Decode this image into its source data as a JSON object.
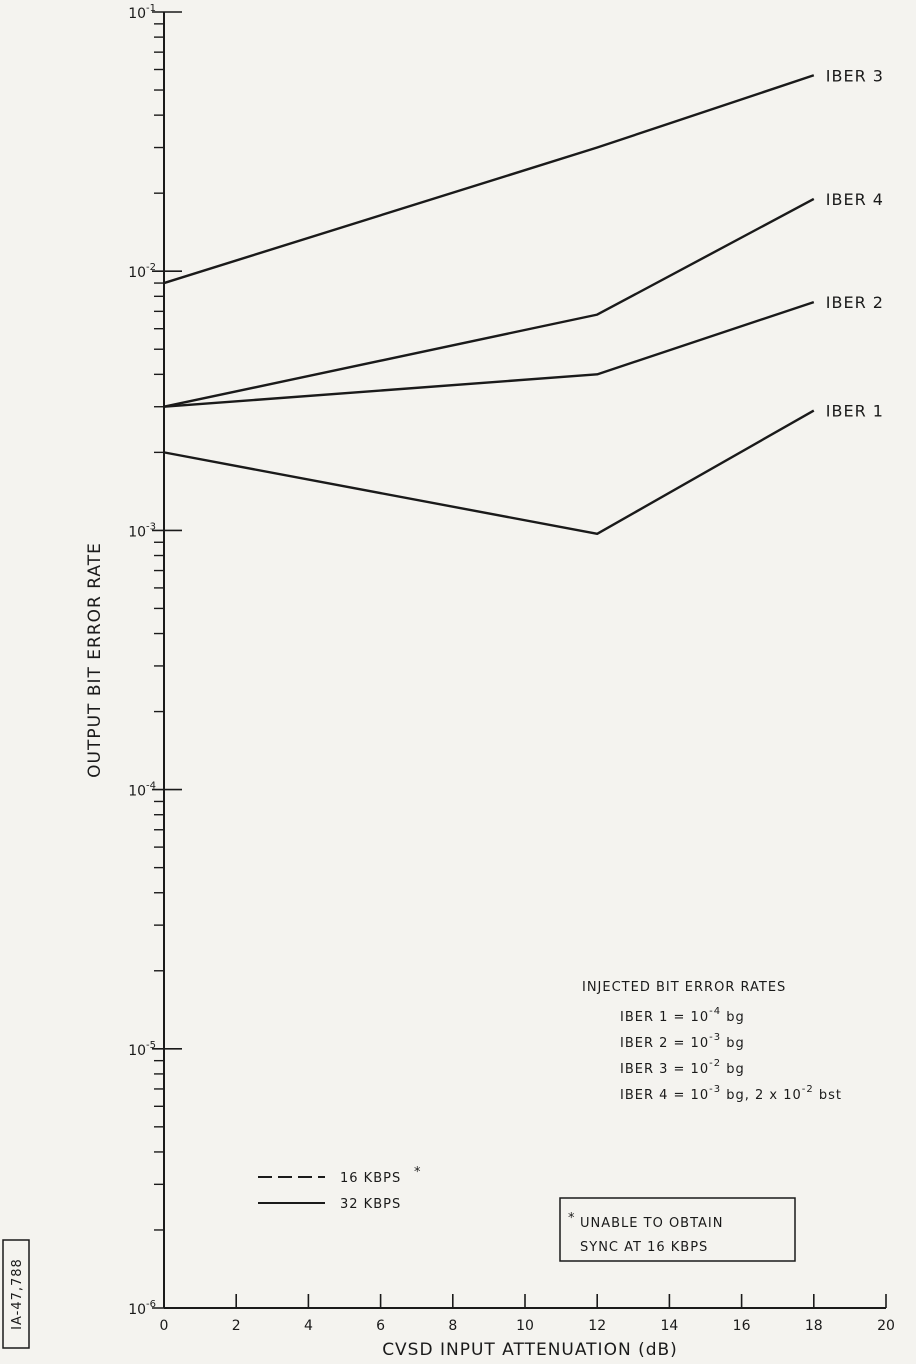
{
  "chart_data": {
    "type": "line",
    "xlabel": "CVSD INPUT ATTENUATION (dB)",
    "ylabel": "OUTPUT BIT ERROR RATE",
    "xlim": [
      0,
      20
    ],
    "ylim": [
      1e-06,
      0.1
    ],
    "yscale": "log",
    "grid": false,
    "x_ticks": [
      "0",
      "2",
      "4",
      "6",
      "8",
      "10",
      "12",
      "14",
      "16",
      "18",
      "20"
    ],
    "y_tick_labels": [
      {
        "base": "10",
        "exp": "-6"
      },
      {
        "base": "10",
        "exp": "-5"
      },
      {
        "base": "10",
        "exp": "-4"
      },
      {
        "base": "10",
        "exp": "-3"
      },
      {
        "base": "10",
        "exp": "-2"
      },
      {
        "base": "10",
        "exp": "-1"
      }
    ],
    "series": [
      {
        "name": "IBER 3",
        "x": [
          0,
          12,
          18
        ],
        "y": [
          0.009,
          0.03,
          0.057
        ]
      },
      {
        "name": "IBER 4",
        "x": [
          0,
          12,
          18
        ],
        "y": [
          0.003,
          0.0068,
          0.019
        ]
      },
      {
        "name": "IBER 2",
        "x": [
          0,
          12,
          18
        ],
        "y": [
          0.003,
          0.004,
          0.0076
        ]
      },
      {
        "name": "IBER 1",
        "x": [
          0,
          12,
          18
        ],
        "y": [
          0.002,
          0.00097,
          0.0029
        ]
      }
    ],
    "legend": {
      "items": [
        {
          "label": "16 KBPS",
          "marker": "*",
          "style": "dashed"
        },
        {
          "label": "32 KBPS",
          "style": "solid"
        }
      ]
    },
    "annotation": {
      "title": "INJECTED BIT ERROR RATES",
      "lines": [
        {
          "prefix": "IBER 1 = 10",
          "exp": "-4",
          "suffix": " bg"
        },
        {
          "prefix": "IBER 2 = 10",
          "exp": "-3",
          "suffix": " bg"
        },
        {
          "prefix": "IBER 3 = 10",
          "exp": "-2",
          "suffix": " bg"
        },
        {
          "prefix": "IBER 4 = 10",
          "exp": "-3",
          "suffix": " bg, 2 x 10",
          "exp2": "-2",
          "suffix2": " bst"
        }
      ]
    },
    "footnote": {
      "marker": "*",
      "line1": "UNABLE TO OBTAIN",
      "line2": "SYNC AT 16 KBPS"
    },
    "figure_id": "IA-47,788"
  }
}
